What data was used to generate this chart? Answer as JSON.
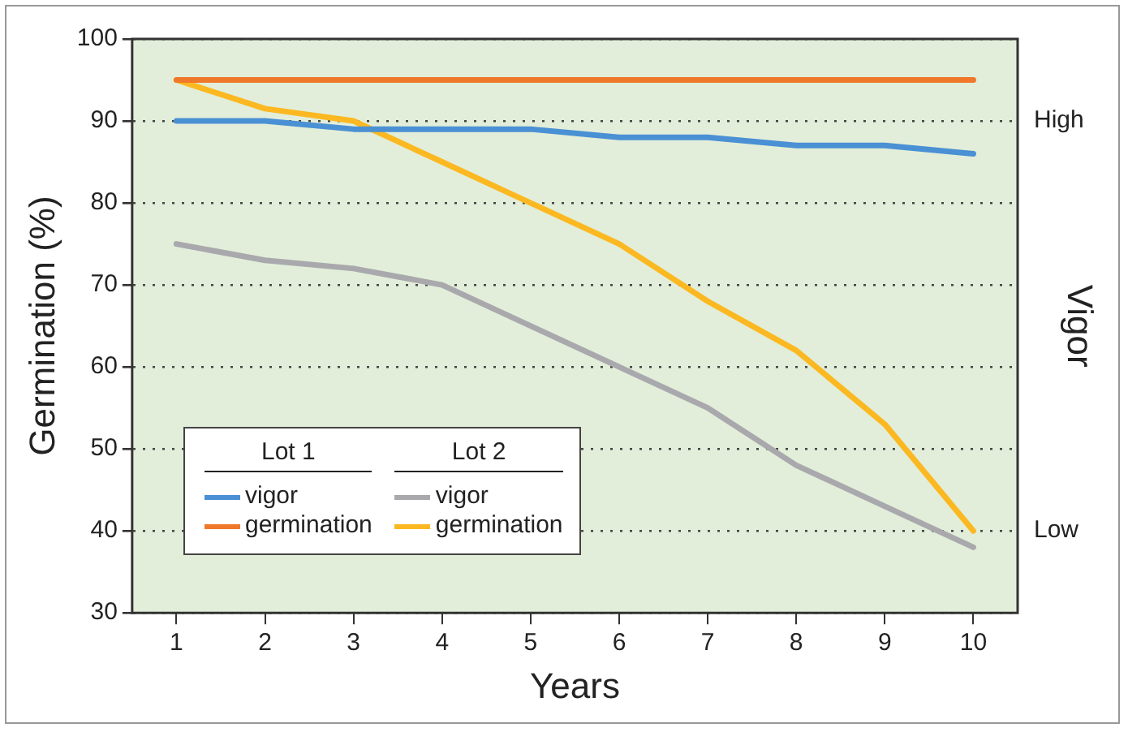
{
  "chart_data": {
    "type": "line",
    "xlabel": "Years",
    "ylabel": "Germination (%)",
    "y2label": "Vigor",
    "categories": [
      "1",
      "2",
      "3",
      "4",
      "5",
      "6",
      "7",
      "8",
      "9",
      "10"
    ],
    "series": [
      {
        "name": "vigor",
        "color": "#4a90d4",
        "values": [
          90,
          90,
          89,
          89,
          89,
          88,
          88,
          87,
          87,
          86
        ]
      },
      {
        "name": "germination",
        "color": "#f0782a",
        "values": [
          95,
          95,
          95,
          95,
          95,
          95,
          95,
          95,
          95,
          95
        ]
      },
      {
        "name": "vigor",
        "color": "#a9a9ad",
        "values": [
          75,
          73,
          72,
          70,
          65,
          60,
          55,
          48,
          43,
          38
        ]
      },
      {
        "name": "germination",
        "color": "#fbb821",
        "values": [
          95,
          91.5,
          90,
          85,
          80,
          75,
          68,
          62,
          53,
          40
        ]
      }
    ],
    "annotations": [
      "Lot 1",
      "Lot 2",
      "High",
      "Low"
    ],
    "ylim": [
      30,
      100
    ],
    "yticks": [
      30,
      40,
      50,
      60,
      70,
      80,
      90,
      100
    ],
    "grid": "y",
    "legend": "bottom left",
    "marker": "none",
    "line_style": "solid"
  }
}
